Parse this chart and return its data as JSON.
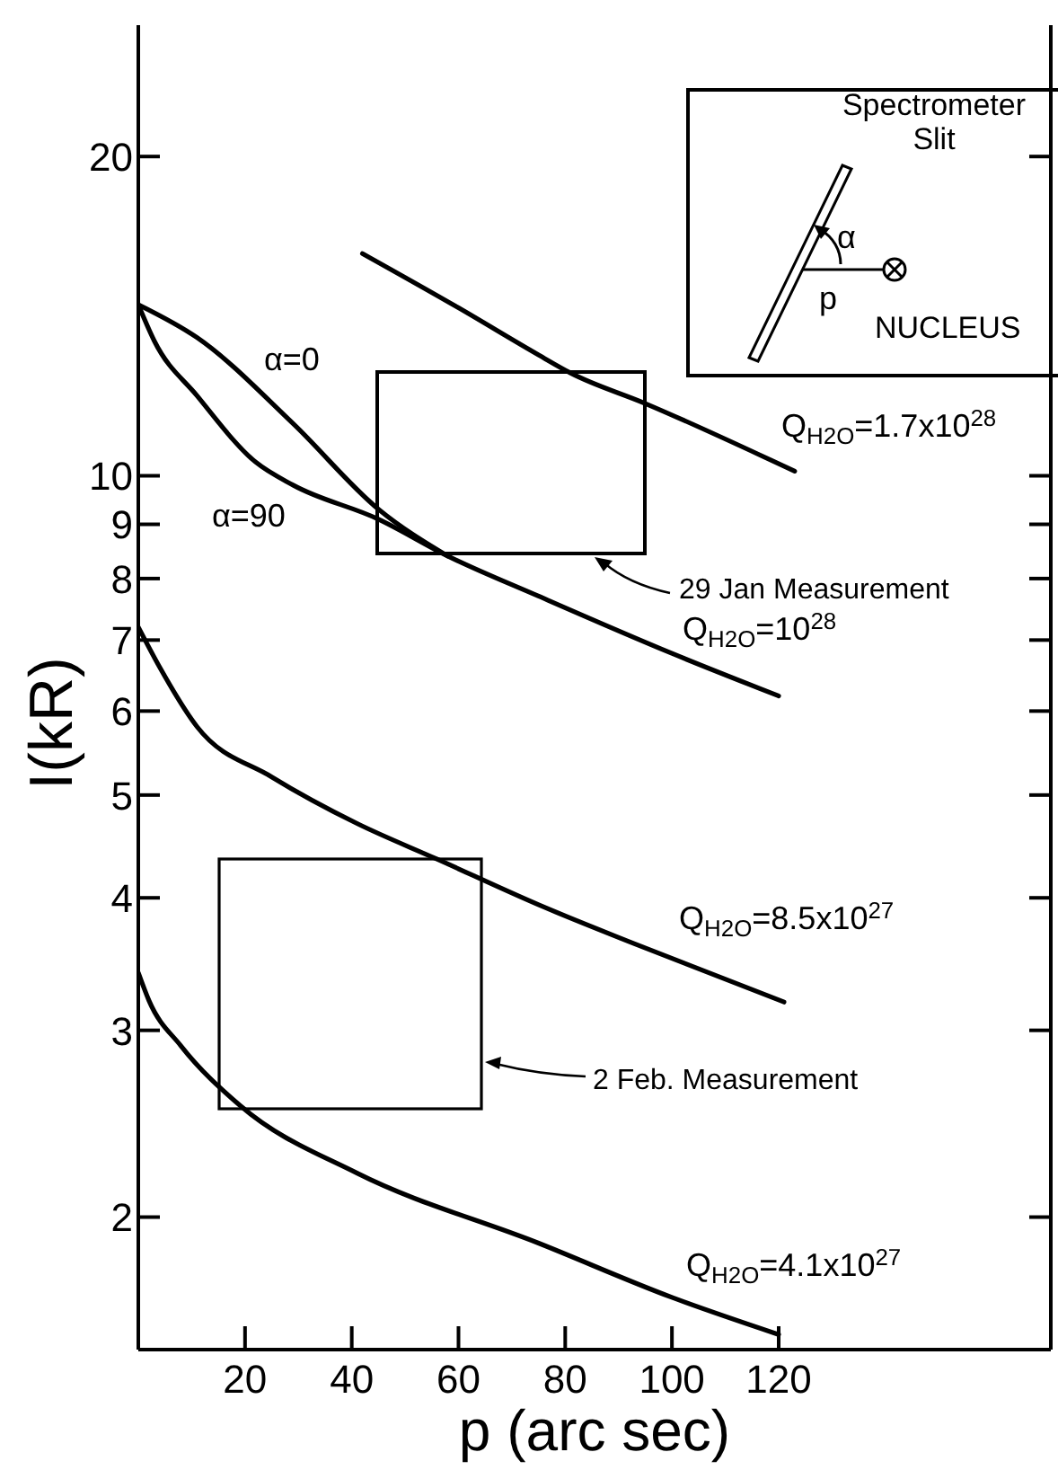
{
  "chart_data": {
    "type": "line",
    "xlabel": "p (arc sec)",
    "ylabel": "I(kR)",
    "log": "y",
    "xlim": [
      0,
      171
    ],
    "xticks": [
      20,
      40,
      60,
      80,
      100,
      120
    ],
    "ylim": [
      1.5,
      26.6
    ],
    "yticks": [
      2,
      3,
      4,
      5,
      6,
      7,
      8,
      9,
      10,
      20
    ],
    "series": [
      {
        "color": "#000000",
        "x": [
          42,
          60,
          75,
          81,
          95,
          123
        ],
        "values": [
          16.2,
          14.4,
          13.0,
          12.5,
          11.7,
          10.1
        ]
      },
      {
        "color": "#000000",
        "x": [
          0,
          11,
          29,
          45,
          58
        ],
        "values": [
          14.5,
          13.5,
          11.2,
          9.3,
          8.4
        ]
      },
      {
        "color": "#000000",
        "x": [
          0,
          3,
          11,
          22,
          29,
          45,
          58,
          75,
          100,
          120
        ],
        "values": [
          14.5,
          13.4,
          11.9,
          10.3,
          9.8,
          9.1,
          8.4,
          7.7,
          6.8,
          6.2
        ]
      },
      {
        "color": "#000000",
        "x": [
          0,
          4,
          11,
          25,
          41,
          56,
          75,
          93,
          121
        ],
        "values": [
          7.2,
          6.6,
          5.8,
          5.2,
          4.7,
          4.35,
          3.94,
          3.62,
          3.19
        ]
      },
      {
        "color": "#000000",
        "x": [
          0,
          2,
          8,
          19,
          41,
          75,
          100,
          120
        ],
        "values": [
          3.4,
          3.2,
          2.9,
          2.55,
          2.2,
          1.89,
          1.68,
          1.55
        ]
      }
    ],
    "annotations": [
      "α=0",
      "α=90",
      "Q$_{H2O}$=1.7x10$^{28}$",
      "Q$_{H2O}$=10$^{28}$",
      "Q$_{H2O}$=8.5x10$^{27}$",
      "Q$_{H2O}$=4.1x10$^{27}$",
      "29 Jan Measurement",
      "2 Feb. Measurement",
      "Spectrometer",
      "Slit",
      "α",
      "p",
      "NUCLEUS"
    ]
  }
}
